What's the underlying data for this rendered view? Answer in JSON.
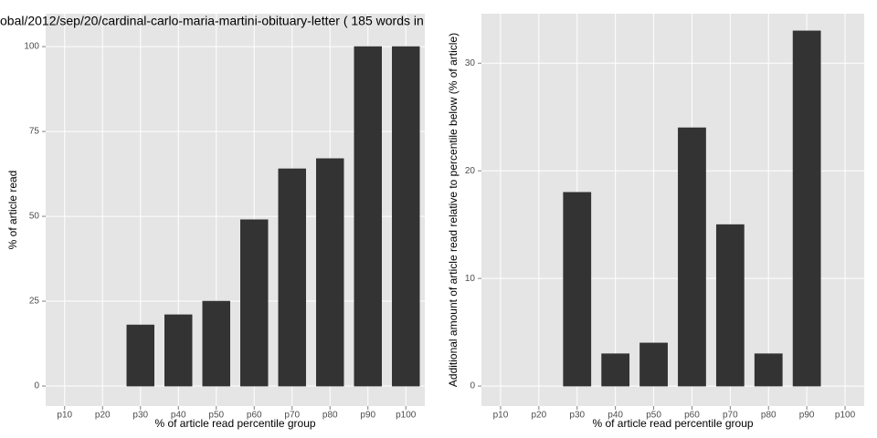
{
  "chart_data": [
    {
      "type": "bar",
      "title": "obal/2012/sep/20/cardinal-carlo-maria-martini-obituary-letter ( 185 words in",
      "x_label": "% of article read percentile group",
      "y_label": "% of article read",
      "categories": [
        "p10",
        "p20",
        "p30",
        "p40",
        "p50",
        "p60",
        "p70",
        "p80",
        "p90",
        "p100"
      ],
      "values": [
        0,
        0,
        18,
        21,
        25,
        49,
        64,
        67,
        100,
        100
      ],
      "color": "#333333",
      "ylim": [
        -5.9,
        109.7
      ],
      "yticks": [
        0,
        25,
        50,
        75,
        100
      ],
      "grid": true
    },
    {
      "type": "bar",
      "x_label": "% of article read percentile group",
      "y_label": "Additional amount of article read relative to percentile below (% of article)",
      "categories": [
        "p10",
        "p20",
        "p30",
        "p40",
        "p50",
        "p60",
        "p70",
        "p80",
        "p90",
        "p100"
      ],
      "values": [
        0,
        0,
        18,
        3,
        4,
        24,
        15,
        3,
        33,
        0
      ],
      "color": "#333333",
      "ylim": [
        -1.86,
        34.6
      ],
      "yticks": [
        0,
        10,
        20,
        30
      ],
      "grid": true
    }
  ]
}
